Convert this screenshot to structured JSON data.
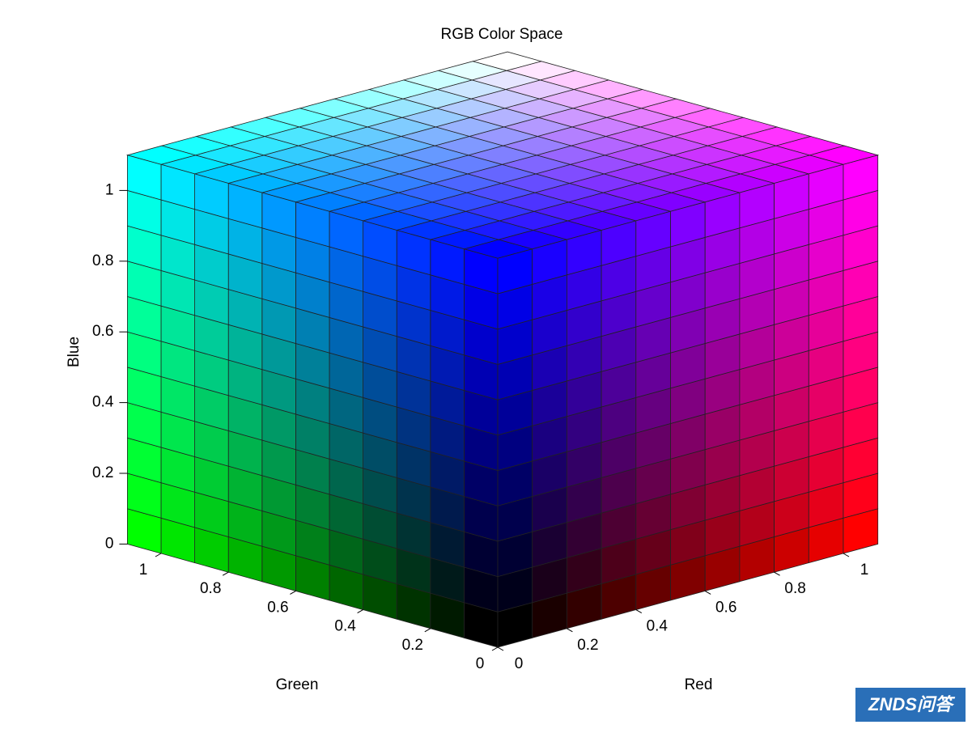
{
  "chart_data": {
    "type": "rgb-cube",
    "title": "RGB Color Space",
    "xlabel": "Red",
    "ylabel": "Green",
    "zlabel": "Blue",
    "xlim": [
      0,
      1.1
    ],
    "ylim": [
      0,
      1.1
    ],
    "zlim": [
      0,
      1.1
    ],
    "xticks": [
      0,
      0.2,
      0.4,
      0.6,
      0.8,
      1
    ],
    "yticks": [
      0,
      0.2,
      0.4,
      0.6,
      0.8,
      1
    ],
    "zticks": [
      0,
      0.2,
      0.4,
      0.6,
      0.8,
      1
    ],
    "grid": true
  },
  "watermark": "ZNDS问答"
}
